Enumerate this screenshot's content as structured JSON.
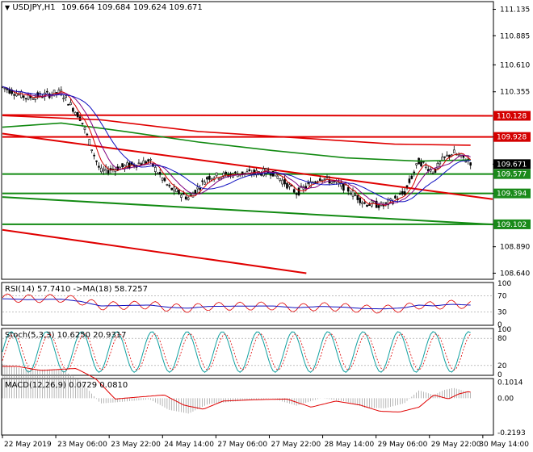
{
  "main": {
    "title": "USDJPY,H1",
    "ohlc": "109.664 109.684 109.624 109.671",
    "price_ticks": [
      "111.135",
      "110.885",
      "110.610",
      "110.355",
      "109.928",
      "109.671",
      "109.577",
      "109.394",
      "109.102",
      "108.890",
      "108.640"
    ],
    "tick_values": [
      111.135,
      110.885,
      110.61,
      110.355,
      109.928,
      109.671,
      109.577,
      109.394,
      109.102,
      108.89,
      108.64
    ],
    "range": [
      108.59,
      111.2
    ],
    "lines": {
      "red": [
        {
          "label": "110.128",
          "from": [
            0,
            110.135
          ],
          "to": [
            1,
            110.128
          ]
        },
        {
          "label": "109.928",
          "from": [
            0,
            109.928
          ],
          "to": [
            1,
            109.928
          ]
        }
      ],
      "green": [
        {
          "label": "109.577",
          "from": [
            0,
            109.577
          ],
          "to": [
            1,
            109.577
          ]
        },
        {
          "label": "109.394",
          "from": [
            0,
            109.394
          ],
          "to": [
            1,
            109.394
          ]
        },
        {
          "label": "109.102",
          "from": [
            0,
            109.102
          ],
          "to": [
            1,
            109.102
          ]
        }
      ],
      "red_diag": [
        {
          "from": [
            0,
            109.96
          ],
          "to": [
            1,
            109.34
          ]
        },
        {
          "from": [
            0,
            109.05
          ],
          "to": [
            0.62,
            108.64
          ]
        }
      ],
      "green_diag": [
        {
          "from": [
            0,
            109.36
          ],
          "to": [
            1,
            109.1
          ]
        }
      ]
    },
    "current_price_label": "109.671",
    "current_price": 109.671,
    "badges": [
      {
        "value": 109.928,
        "label": "109.928",
        "color": "#d40000"
      },
      {
        "value": 110.128,
        "label": "110.128",
        "color": "#d40000"
      },
      {
        "value": 109.671,
        "label": "109.671",
        "color": "#000000"
      },
      {
        "value": 109.577,
        "label": "109.577",
        "color": "#1a8a1a"
      },
      {
        "value": 109.394,
        "label": "109.394",
        "color": "#1a8a1a"
      },
      {
        "value": 109.102,
        "label": "109.102",
        "color": "#1a8a1a"
      }
    ]
  },
  "rsi": {
    "title": "RSI(14) 57.7410 ->MA(18) 58.7257",
    "ticks": [
      "100",
      "70",
      "30",
      "0"
    ]
  },
  "stoch": {
    "title": "Stoch(5,3,3) 10.6250 20.9317",
    "ticks": [
      "100",
      "80",
      "20",
      "0"
    ]
  },
  "macd": {
    "title": "MACD(12,26,9) 0.0729 0.0810",
    "ticks": [
      "0.1014",
      "0.00",
      "-0.2193"
    ]
  },
  "time_axis": [
    "22 May 2019",
    "23 May 06:00",
    "23 May 22:00",
    "24 May 14:00",
    "27 May 06:00",
    "27 May 22:00",
    "28 May 14:00",
    "29 May 06:00",
    "29 May 22:00",
    "30 May 14:00"
  ],
  "colors": {
    "red": "#e00000",
    "green": "#128a12",
    "bull": "#000000",
    "bear": "#000000",
    "ma_fast": "#d40000",
    "ma_slow": "#1010c0",
    "ma_mid": "#800080"
  }
}
